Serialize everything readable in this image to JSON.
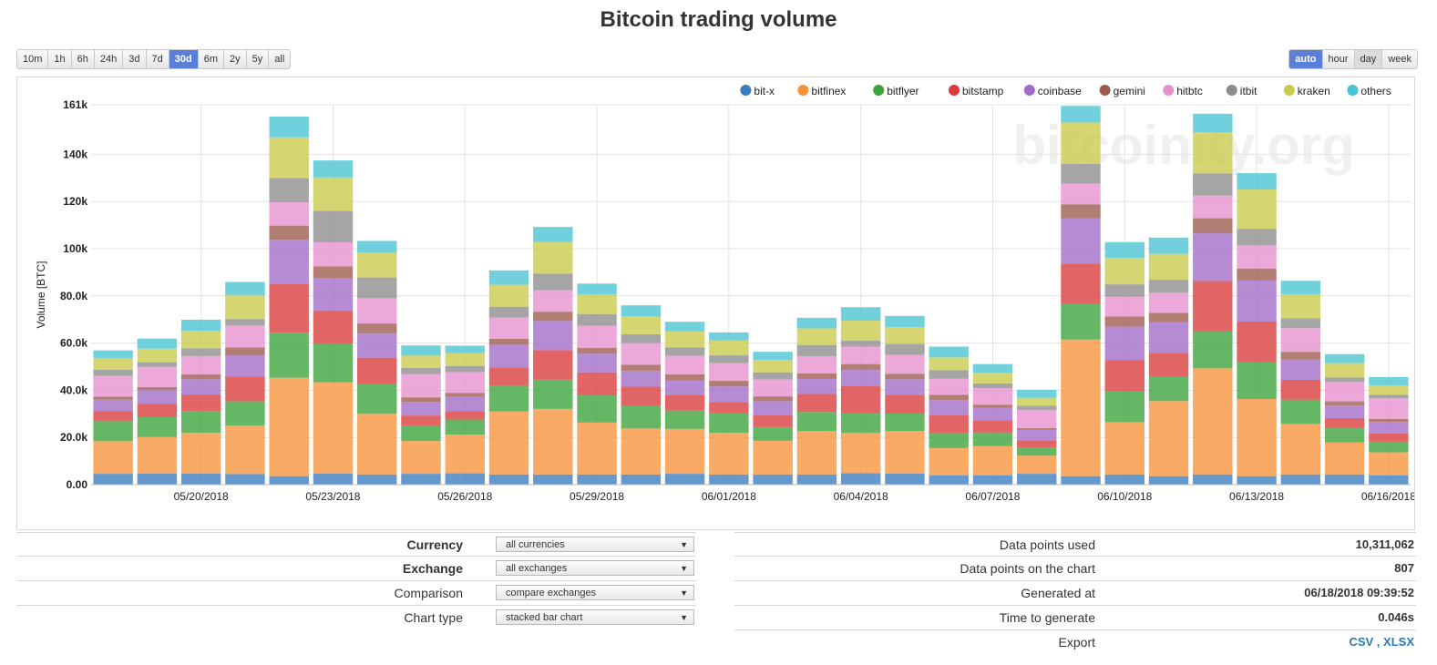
{
  "title": "Bitcoin trading volume",
  "range_buttons": [
    {
      "label": "10m",
      "active": false
    },
    {
      "label": "1h",
      "active": false
    },
    {
      "label": "6h",
      "active": false
    },
    {
      "label": "24h",
      "active": false
    },
    {
      "label": "3d",
      "active": false
    },
    {
      "label": "7d",
      "active": false
    },
    {
      "label": "30d",
      "active": true
    },
    {
      "label": "6m",
      "active": false
    },
    {
      "label": "2y",
      "active": false
    },
    {
      "label": "5y",
      "active": false
    },
    {
      "label": "all",
      "active": false
    }
  ],
  "granularity_buttons": [
    {
      "label": "auto",
      "active": true
    },
    {
      "label": "hour",
      "active": false
    },
    {
      "label": "day",
      "active": false,
      "selected": true
    },
    {
      "label": "week",
      "active": false
    }
  ],
  "watermark": "bitcoinity.org",
  "chart_data": {
    "type": "bar",
    "stacked": true,
    "ylabel": "Volume [BTC]",
    "ylim": [
      0,
      161000
    ],
    "yticks": [
      "0.00",
      "20.0k",
      "40.0k",
      "60.0k",
      "80.0k",
      "100k",
      "120k",
      "140k",
      "161k"
    ],
    "ytick_values": [
      0,
      20000,
      40000,
      60000,
      80000,
      100000,
      120000,
      140000,
      161000
    ],
    "xtick_labels": [
      "05/20/2018",
      "05/23/2018",
      "05/26/2018",
      "05/29/2018",
      "06/01/2018",
      "06/04/2018",
      "06/07/2018",
      "06/10/2018",
      "06/13/2018",
      "06/16/2018"
    ],
    "xtick_bar_index": [
      2.5,
      5.5,
      8.5,
      11.5,
      14.5,
      17.5,
      20.5,
      23.5,
      26.5,
      29.5
    ],
    "legend_position": "top-right",
    "grid": true,
    "series": [
      {
        "name": "bit-x",
        "color": "#3a7cc0",
        "values": [
          4600,
          4700,
          4700,
          4500,
          3600,
          4700,
          4300,
          4600,
          4800,
          4300,
          4300,
          4300,
          4300,
          4600,
          4300,
          4300,
          4300,
          4900,
          4700,
          4000,
          4000,
          4600,
          3600,
          4300,
          3600,
          4300,
          3600,
          4300,
          4300,
          4000
        ]
      },
      {
        "name": "bitfinex",
        "color": "#f7923a",
        "values": [
          13800,
          15500,
          17300,
          20500,
          41700,
          38700,
          25700,
          13900,
          16400,
          26700,
          27800,
          22000,
          19500,
          19000,
          17700,
          14300,
          18400,
          17000,
          18000,
          11500,
          12300,
          7700,
          57900,
          22200,
          31800,
          45000,
          32700,
          21400,
          13600,
          9700
        ]
      },
      {
        "name": "bitflyer",
        "color": "#3aa33a",
        "values": [
          8500,
          8400,
          9300,
          10300,
          19100,
          16500,
          12600,
          6600,
          6400,
          10800,
          12400,
          11500,
          9500,
          7800,
          8200,
          5800,
          8100,
          8600,
          7400,
          6500,
          5800,
          3500,
          15000,
          13000,
          10200,
          15600,
          15600,
          10300,
          6000,
          4500
        ]
      },
      {
        "name": "bitstamp",
        "color": "#d93a3a",
        "values": [
          4300,
          5700,
          6900,
          10600,
          20600,
          13900,
          11200,
          4200,
          3600,
          7900,
          12500,
          9800,
          8200,
          6600,
          4800,
          5200,
          7600,
          11200,
          8000,
          7600,
          5100,
          3000,
          17200,
          13200,
          10300,
          21400,
          17200,
          8400,
          4300,
          3500
        ]
      },
      {
        "name": "coinbase",
        "color": "#a06cc8",
        "values": [
          4800,
          5700,
          6500,
          8900,
          18800,
          13700,
          10200,
          5800,
          6000,
          9600,
          12400,
          7900,
          6800,
          6200,
          6600,
          5800,
          6400,
          6900,
          6600,
          6200,
          5300,
          4400,
          19100,
          14300,
          13000,
          20200,
          17400,
          8600,
          5300,
          4900
        ]
      },
      {
        "name": "gemini",
        "color": "#9c5a4c",
        "values": [
          1300,
          1300,
          2000,
          3300,
          6000,
          5000,
          4300,
          1900,
          1700,
          2500,
          3900,
          2500,
          2500,
          2600,
          2400,
          2000,
          2400,
          2500,
          2300,
          2300,
          1400,
          800,
          6000,
          4300,
          3900,
          6400,
          5100,
          3300,
          1800,
          1200
        ]
      },
      {
        "name": "hitbtc",
        "color": "#e88fd0",
        "values": [
          8800,
          8700,
          7800,
          9300,
          9900,
          10200,
          10700,
          9900,
          8800,
          9000,
          9100,
          9300,
          9200,
          7800,
          7500,
          7200,
          7200,
          7400,
          8000,
          6800,
          7000,
          7600,
          8800,
          8300,
          8500,
          9600,
          9800,
          10000,
          8200,
          8800
        ]
      },
      {
        "name": "itbit",
        "color": "#8c8c8c",
        "values": [
          2600,
          1900,
          3300,
          2800,
          10200,
          13300,
          8800,
          2600,
          2500,
          4600,
          7000,
          5000,
          3700,
          3600,
          3300,
          3000,
          4800,
          2500,
          4600,
          3600,
          2000,
          1800,
          8400,
          5300,
          5500,
          9400,
          7000,
          4200,
          1900,
          1500
        ]
      },
      {
        "name": "kraken",
        "color": "#c9c94a",
        "values": [
          5000,
          5700,
          7400,
          10000,
          17300,
          14200,
          10500,
          5200,
          5500,
          9300,
          13500,
          8400,
          7600,
          6800,
          6300,
          5300,
          7000,
          8500,
          7100,
          5400,
          4500,
          3400,
          17500,
          11200,
          11000,
          17400,
          16700,
          10200,
          6100,
          4000
        ]
      },
      {
        "name": "others",
        "color": "#48c4d4",
        "values": [
          3200,
          4300,
          4700,
          5700,
          8800,
          7200,
          5000,
          4300,
          3200,
          6100,
          6300,
          4500,
          4700,
          4000,
          3400,
          3400,
          4500,
          5700,
          4800,
          4600,
          3700,
          3400,
          7000,
          6700,
          6900,
          7900,
          6900,
          5700,
          3800,
          3500
        ]
      }
    ]
  },
  "info": {
    "currency_label": "Currency",
    "currency_value": "all currencies",
    "exchange_label": "Exchange",
    "exchange_value": "all exchanges",
    "comparison_label": "Comparison",
    "comparison_value": "compare exchanges",
    "chart_type_label": "Chart type",
    "chart_type_value": "stacked bar chart",
    "data_points_used_label": "Data points used",
    "data_points_used_value": "10,311,062",
    "data_points_chart_label": "Data points on the chart",
    "data_points_chart_value": "807",
    "generated_at_label": "Generated at",
    "generated_at_value": "06/18/2018 09:39:52",
    "time_to_generate_label": "Time to generate",
    "time_to_generate_value": "0.046s",
    "export_label": "Export",
    "export_csv": "CSV",
    "export_sep": " , ",
    "export_xlsx": "XLSX"
  }
}
